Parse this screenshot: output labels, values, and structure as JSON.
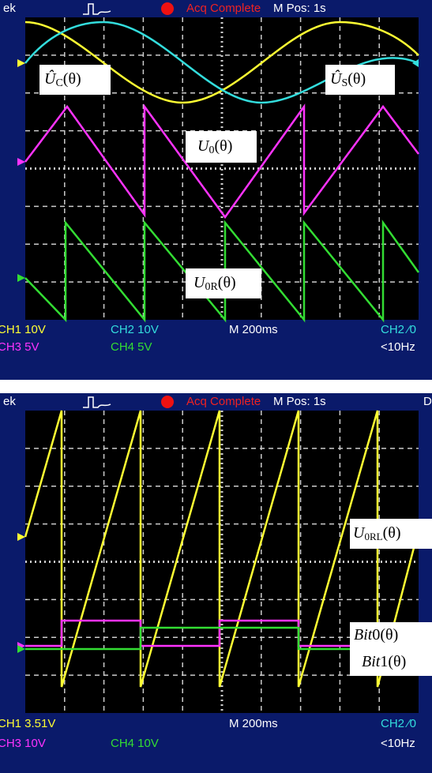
{
  "scopes": [
    {
      "header": {
        "brand": "ek",
        "status": "Acq Complete",
        "position": "M Pos: 1s"
      },
      "labels": [
        {
          "symbol": "Û",
          "sub": "C",
          "arg": "(θ)"
        },
        {
          "symbol": "Û",
          "sub": "S",
          "arg": "(θ)"
        },
        {
          "symbol": "U",
          "sub": "0",
          "arg": "(θ)"
        },
        {
          "symbol": "U",
          "sub": "0R",
          "arg": "(θ)"
        }
      ],
      "footer": {
        "ch1": "CH1 10V",
        "ch2": "CH2 10V",
        "timebase": "M 200ms",
        "trigger": "CH2 ⁄0",
        "ch3": "CH3 5V",
        "ch4": "CH4 5V",
        "freq": "<10Hz"
      }
    },
    {
      "header": {
        "brand": "ek",
        "status": "Acq Complete",
        "position": "M Pos: 1s",
        "edge": "D"
      },
      "labels": [
        {
          "symbol": "U",
          "sub": "0RL",
          "arg": "(θ)"
        },
        {
          "symbol": "Bit",
          "arg": "0(θ)"
        },
        {
          "symbol": "Bit",
          "arg": "1(θ)"
        }
      ],
      "footer": {
        "ch1": "CH1 3.51V",
        "timebase": "M 200ms",
        "trigger": "CH2 ⁄0",
        "ch3": "CH3 10V",
        "ch4": "CH4 10V",
        "freq": "<10Hz"
      }
    }
  ]
}
